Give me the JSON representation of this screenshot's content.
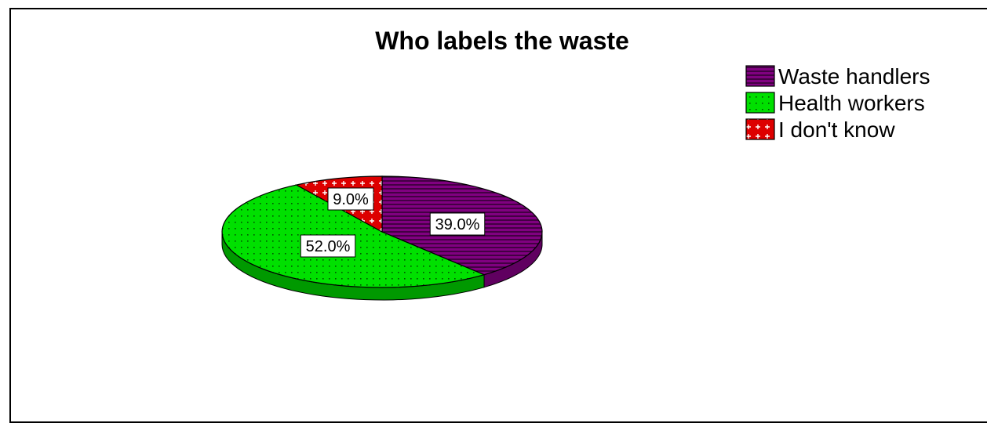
{
  "chart_data": {
    "type": "pie",
    "title": "Who labels the waste",
    "slices": [
      {
        "name": "Waste handlers",
        "value": 39.0,
        "label": "39.0%",
        "color": "#800080",
        "pattern": "horizontal-stripes"
      },
      {
        "name": "Health workers",
        "value": 52.0,
        "label": "52.0%",
        "color": "#00cc00",
        "pattern": "dots"
      },
      {
        "name": "I don't know",
        "value": 9.0,
        "label": "9.0%",
        "color": "#dd0000",
        "pattern": "crosses"
      }
    ],
    "legend_position": "top-right",
    "style": "3d-tilted"
  }
}
